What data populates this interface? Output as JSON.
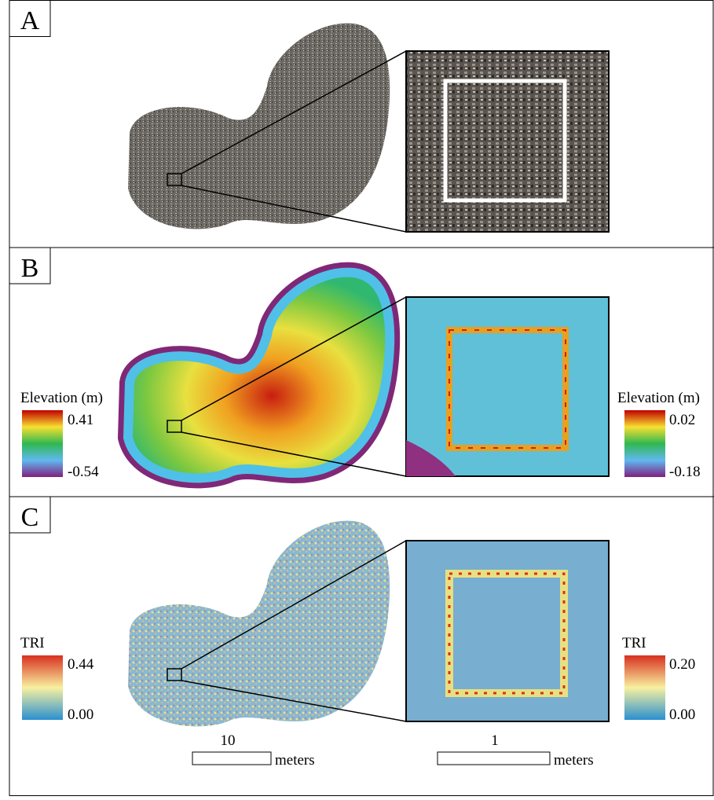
{
  "panels": [
    {
      "label": "A"
    },
    {
      "label": "B",
      "legends": [
        {
          "title": "Elevation (m)",
          "max": "0.41",
          "min": "-0.54"
        },
        {
          "title": "Elevation (m)",
          "max": "0.02",
          "min": "-0.18"
        }
      ]
    },
    {
      "label": "C",
      "legends": [
        {
          "title": "TRI",
          "max": "0.44",
          "min": "0.00"
        },
        {
          "title": "TRI",
          "max": "0.20",
          "min": "0.00"
        }
      ]
    }
  ],
  "scale_bars": [
    {
      "value": "10",
      "unit": "meters"
    },
    {
      "value": "1",
      "unit": "meters"
    }
  ]
}
